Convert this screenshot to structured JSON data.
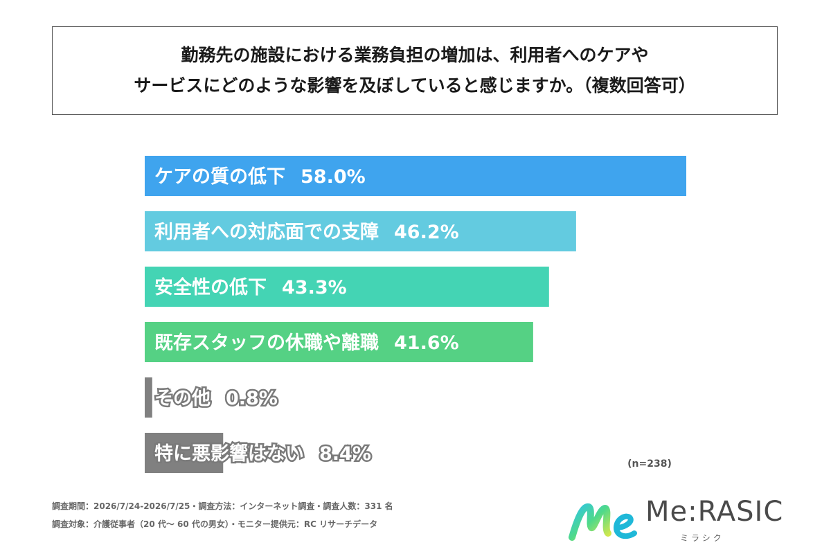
{
  "title": {
    "line1": "勤務先の施設における業務負担の増加は、利用者へのケアや",
    "line2": "サービスにどのような影響を及ぼしていると感じますか。（複数回答可）"
  },
  "chart_data": {
    "type": "bar",
    "orientation": "horizontal",
    "categories": [
      "ケアの質の低下",
      "利用者への対応面での支障",
      "安全性の低下",
      "既存スタッフの休職や離職",
      "その他",
      "特に悪影響はない"
    ],
    "values": [
      58.0,
      46.2,
      43.3,
      41.6,
      0.8,
      8.4
    ],
    "value_labels": [
      "58.0%",
      "46.2%",
      "43.3%",
      "41.6%",
      "0.8%",
      "8.4%"
    ],
    "colors": [
      "#3fa4ee",
      "#63cbe0",
      "#44d4b4",
      "#55d184",
      "#808080",
      "#808080"
    ],
    "xlim": [
      0,
      58.0
    ],
    "grid": false,
    "legend": "none"
  },
  "sample_note": "(n=238)",
  "footnotes": {
    "line1": "調査期間：2026/7/24-2026/7/25・調査方法：インターネット調査・調査人数：331 名",
    "line2": "調査対象：介護従事者（20 代〜 60 代の男女）・モニター提供元：RC リサーチデータ"
  },
  "logo": {
    "icon_name": "merasic-logo-icon",
    "name": "Me:RASIC",
    "sub": "ミラシク"
  }
}
